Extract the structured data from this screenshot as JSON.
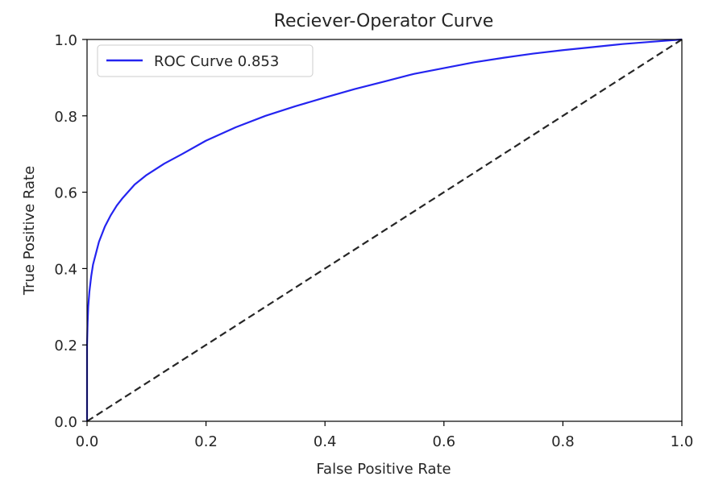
{
  "chart_data": {
    "type": "line",
    "title": "Reciever-Operator Curve",
    "xlabel": "False Positive Rate",
    "ylabel": "True Positive Rate",
    "xlim": [
      0.0,
      1.0
    ],
    "ylim": [
      0.0,
      1.0
    ],
    "xticks": [
      "0.0",
      "0.2",
      "0.4",
      "0.6",
      "0.8",
      "1.0"
    ],
    "yticks": [
      "0.0",
      "0.2",
      "0.4",
      "0.6",
      "0.8",
      "1.0"
    ],
    "xtick_values": [
      0.0,
      0.2,
      0.4,
      0.6,
      0.8,
      1.0
    ],
    "ytick_values": [
      0.0,
      0.2,
      0.4,
      0.6,
      0.8,
      1.0
    ],
    "grid": false,
    "legend_position": "top-left",
    "series": [
      {
        "name": "ROC Curve 0.853",
        "color": "#2424f0",
        "style": "solid",
        "x": [
          0.0,
          0.0,
          0.001,
          0.002,
          0.004,
          0.007,
          0.01,
          0.015,
          0.02,
          0.03,
          0.04,
          0.05,
          0.06,
          0.08,
          0.1,
          0.13,
          0.16,
          0.2,
          0.25,
          0.3,
          0.35,
          0.4,
          0.45,
          0.5,
          0.55,
          0.6,
          0.65,
          0.7,
          0.75,
          0.8,
          0.85,
          0.9,
          0.95,
          1.0
        ],
        "y": [
          0.0,
          0.2,
          0.26,
          0.3,
          0.34,
          0.38,
          0.41,
          0.44,
          0.47,
          0.51,
          0.54,
          0.565,
          0.585,
          0.62,
          0.645,
          0.675,
          0.7,
          0.735,
          0.77,
          0.8,
          0.825,
          0.848,
          0.87,
          0.89,
          0.91,
          0.925,
          0.94,
          0.952,
          0.963,
          0.972,
          0.98,
          0.988,
          0.994,
          1.0
        ]
      },
      {
        "color": "#262626",
        "style": "dashed",
        "x": [
          0.0,
          1.0
        ],
        "y": [
          0.0,
          1.0
        ]
      }
    ]
  }
}
